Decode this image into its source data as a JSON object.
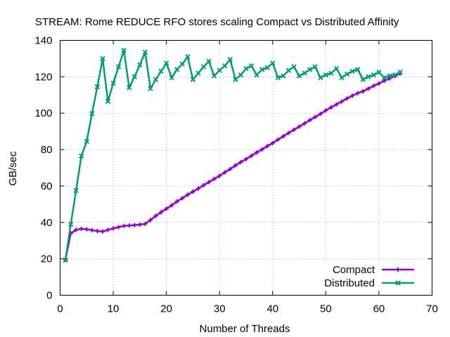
{
  "chart_data": {
    "type": "line",
    "title": "STREAM: Rome REDUCE RFO stores scaling Compact vs Distributed Affinity",
    "xlabel": "Number of Threads",
    "ylabel": "GB/sec",
    "xlim": [
      0,
      70
    ],
    "ylim": [
      0,
      140
    ],
    "xticks": [
      0,
      10,
      20,
      30,
      40,
      50,
      60,
      70
    ],
    "yticks": [
      0,
      20,
      40,
      60,
      80,
      100,
      120,
      140
    ],
    "grid": true,
    "legend_position": "bottom-right",
    "x": [
      1,
      2,
      3,
      4,
      5,
      6,
      7,
      8,
      9,
      10,
      11,
      12,
      13,
      14,
      15,
      16,
      17,
      18,
      19,
      20,
      21,
      22,
      23,
      24,
      25,
      26,
      27,
      28,
      29,
      30,
      31,
      32,
      33,
      34,
      35,
      36,
      37,
      38,
      39,
      40,
      41,
      42,
      43,
      44,
      45,
      46,
      47,
      48,
      49,
      50,
      51,
      52,
      53,
      54,
      55,
      56,
      57,
      58,
      59,
      60,
      61,
      62,
      63,
      64
    ],
    "series": [
      {
        "name": "Compact",
        "color": "#9400d3",
        "values": [
          19.5,
          34.0,
          35.9,
          36.5,
          36.2,
          35.7,
          35.3,
          35.0,
          35.9,
          36.7,
          37.4,
          38.1,
          38.3,
          38.5,
          38.8,
          39.2,
          41.3,
          43.6,
          45.6,
          47.5,
          49.4,
          51.5,
          53.3,
          55.2,
          56.9,
          58.6,
          60.4,
          62.1,
          63.9,
          65.6,
          67.5,
          69.3,
          71.3,
          73.1,
          74.8,
          76.6,
          78.4,
          80.1,
          81.9,
          83.6,
          85.5,
          87.3,
          89.1,
          90.9,
          92.6,
          94.4,
          96.2,
          97.9,
          99.6,
          101.5,
          103.2,
          104.8,
          106.4,
          108.1,
          109.6,
          111.0,
          112.0,
          113.5,
          115.0,
          116.3,
          117.8,
          119.1,
          120.4,
          121.8
        ]
      },
      {
        "name": "Distributed",
        "color": "#009e73",
        "values": [
          19.3,
          39.0,
          57.5,
          76.5,
          84.5,
          99.8,
          114.5,
          130.0,
          106.5,
          116.5,
          125.5,
          134.5,
          114.0,
          120.0,
          126.5,
          133.5,
          113.5,
          118.5,
          123.0,
          127.5,
          119.5,
          124.0,
          127.0,
          131.0,
          118.5,
          122.0,
          125.5,
          128.5,
          120.5,
          123.5,
          126.0,
          129.5,
          118.5,
          121.0,
          124.5,
          126.0,
          121.0,
          124.0,
          125.0,
          127.5,
          119.5,
          120.5,
          123.5,
          125.5,
          120.5,
          122.0,
          124.0,
          125.5,
          119.5,
          121.0,
          122.0,
          124.5,
          119.5,
          121.5,
          123.0,
          124.0,
          118.5,
          120.0,
          121.0,
          122.5,
          119.5,
          120.5,
          121.0,
          122.5
        ]
      }
    ]
  }
}
